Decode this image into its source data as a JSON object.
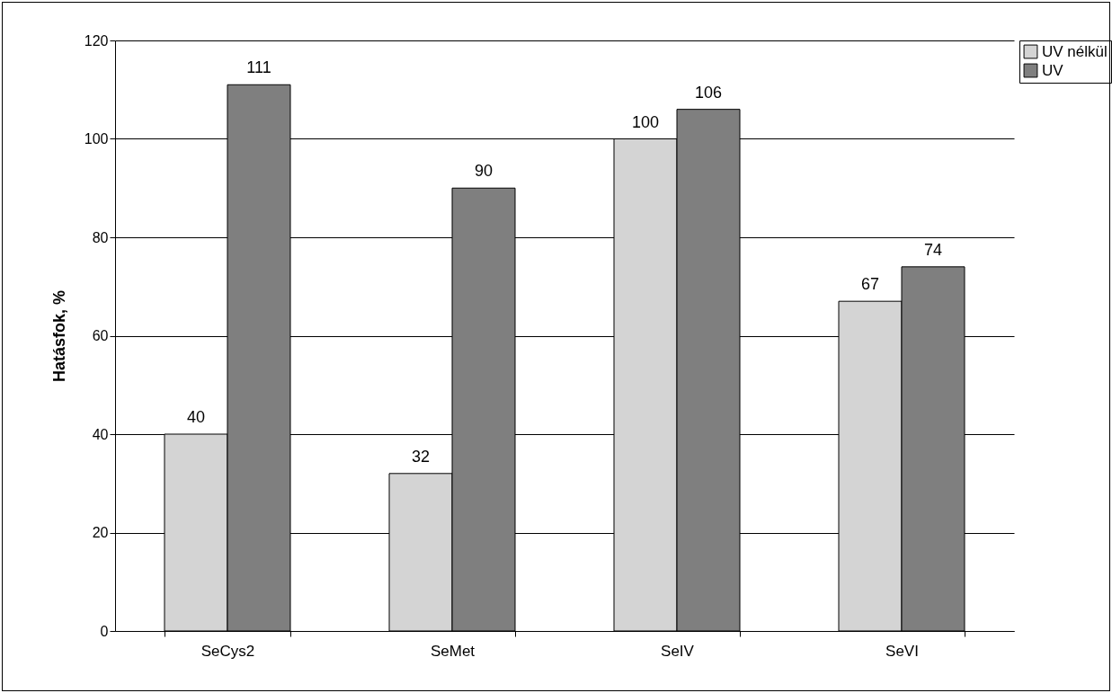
{
  "chart_data": {
    "type": "bar",
    "ylabel": "Hatásfok, %",
    "categories": [
      "SeCys2",
      "SeMet",
      "SeIV",
      "SeVI"
    ],
    "series": [
      {
        "name": "UV nélkül",
        "color": "#d4d4d4",
        "values": [
          40,
          32,
          100,
          67
        ]
      },
      {
        "name": "UV",
        "color": "#7f7f7f",
        "values": [
          111,
          90,
          106,
          74
        ]
      }
    ],
    "ylim": [
      0,
      120
    ],
    "yticks": [
      0,
      20,
      40,
      60,
      80,
      100,
      120
    ],
    "grid": "y",
    "legend": "right",
    "data_labels": true
  }
}
